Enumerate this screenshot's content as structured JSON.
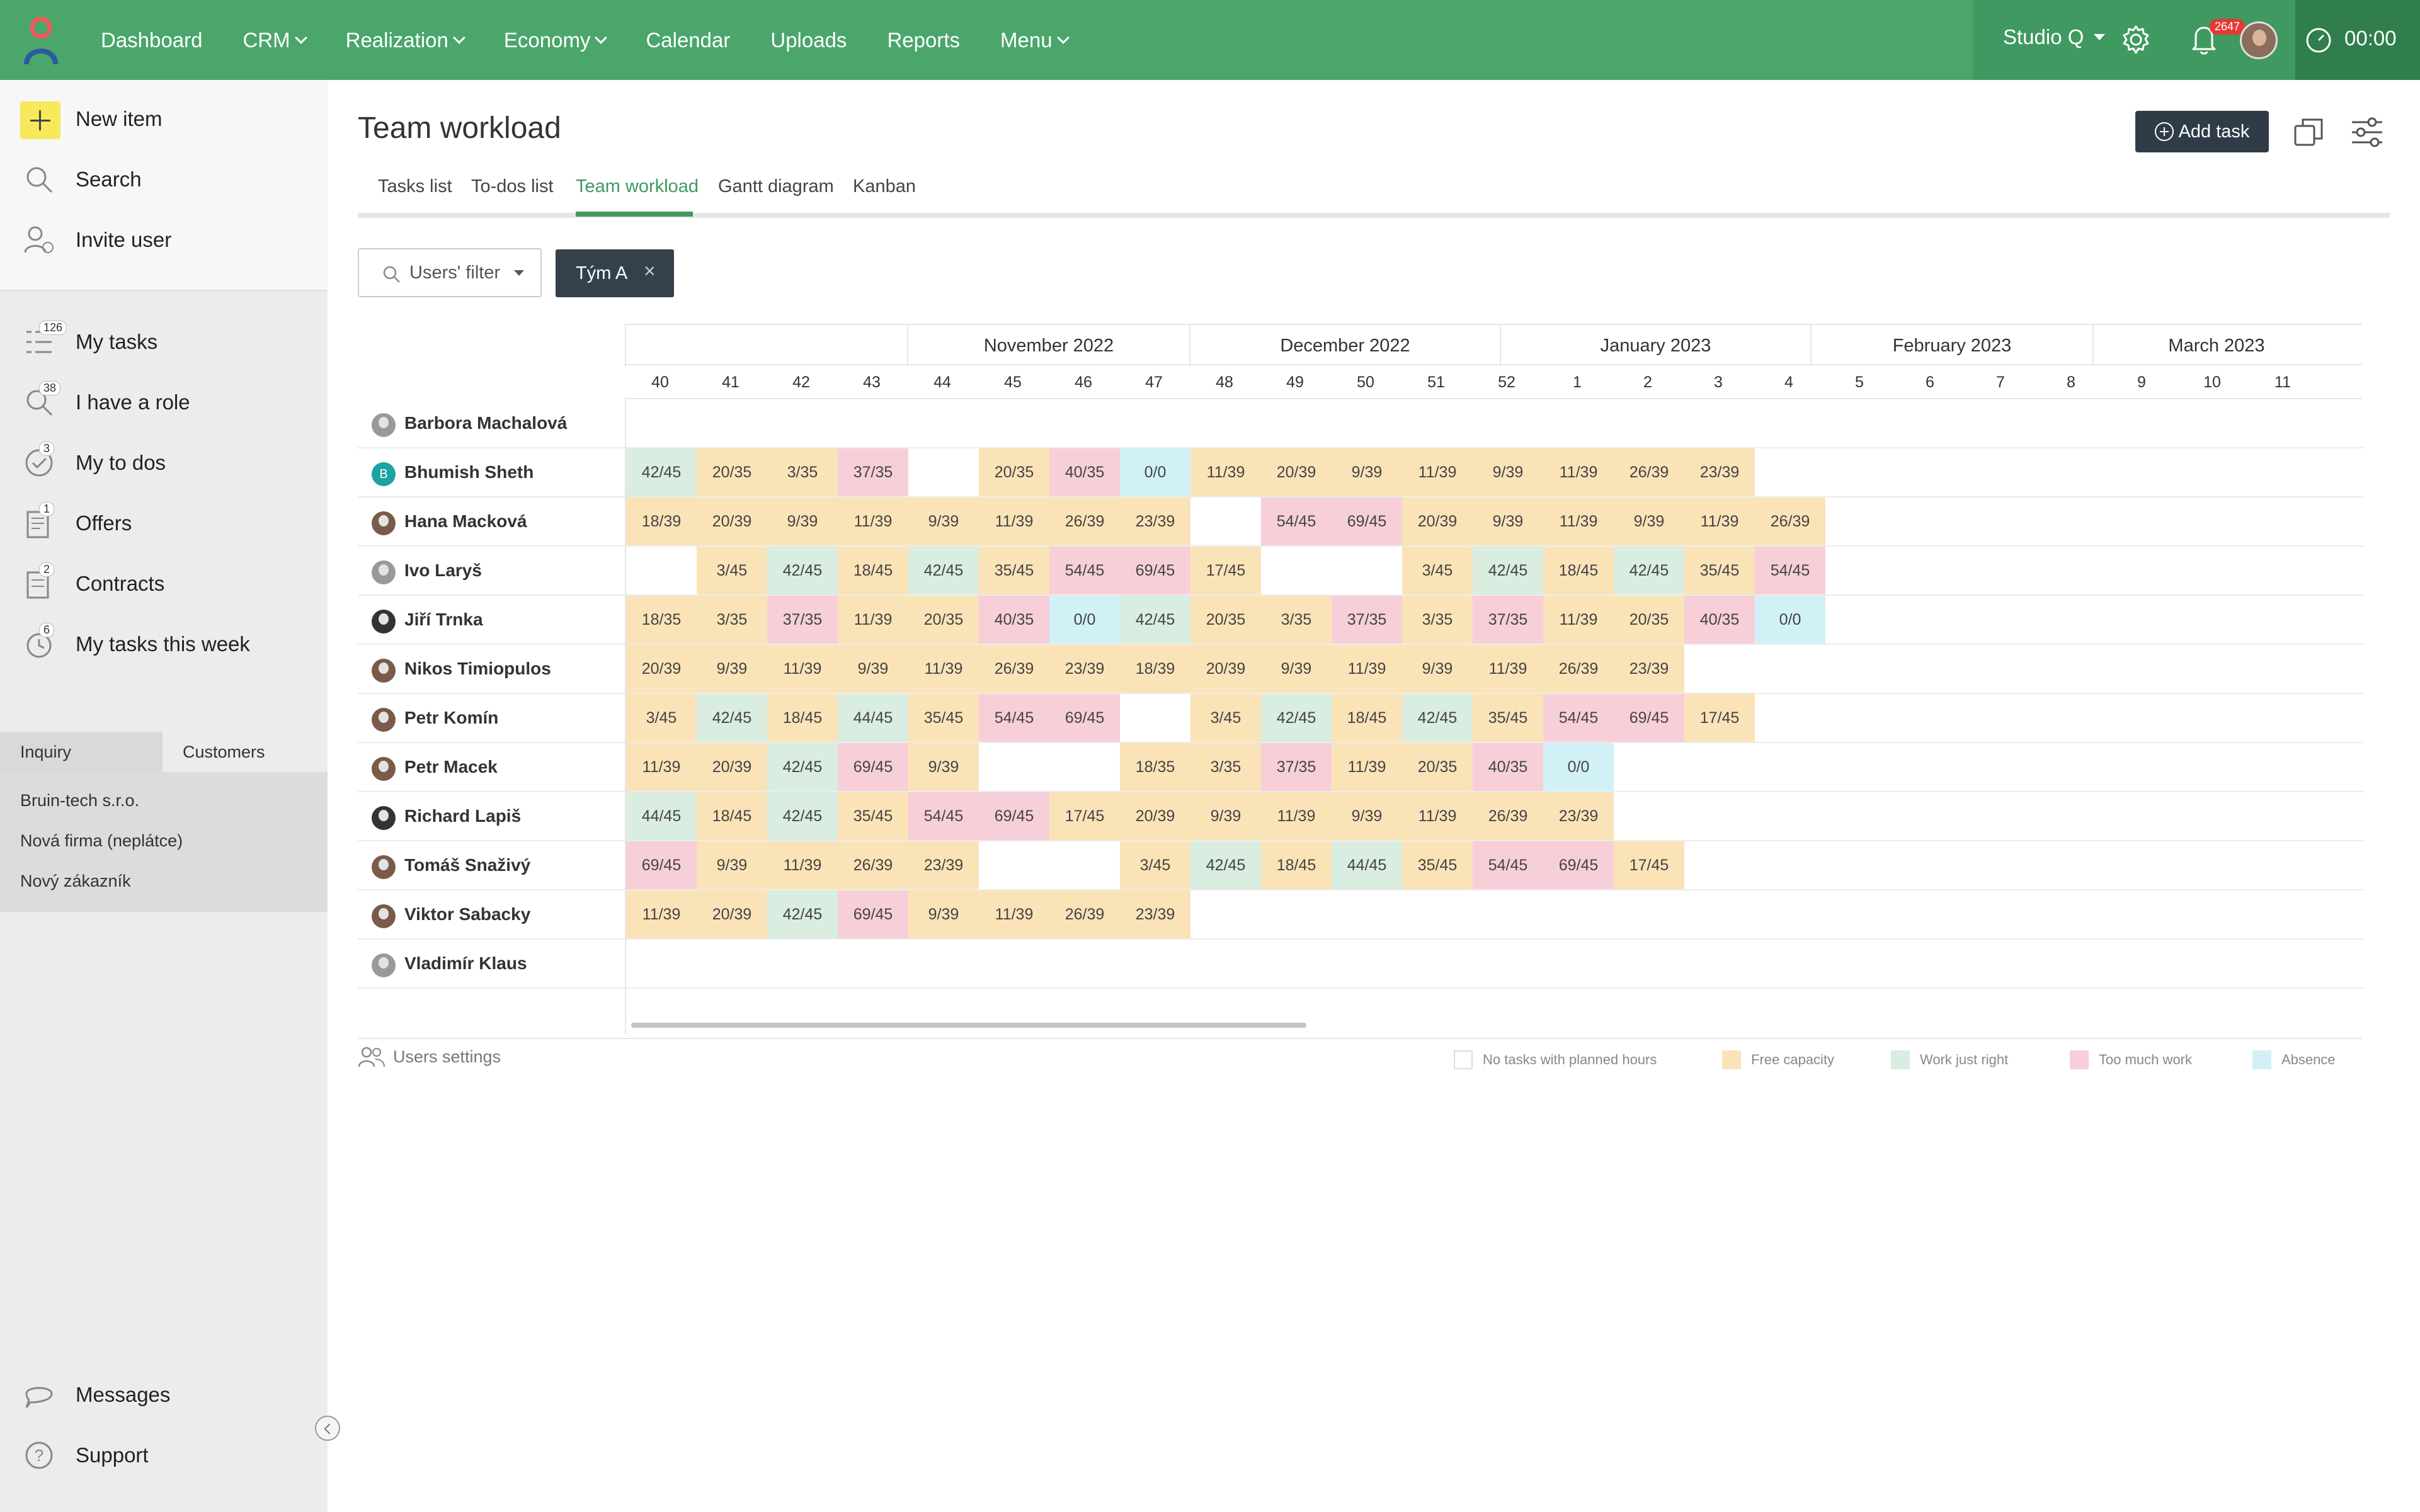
{
  "nav": {
    "items": [
      {
        "label": "Dashboard",
        "dropdown": false
      },
      {
        "label": "CRM",
        "dropdown": true
      },
      {
        "label": "Realization",
        "dropdown": true
      },
      {
        "label": "Economy",
        "dropdown": true
      },
      {
        "label": "Calendar",
        "dropdown": false
      },
      {
        "label": "Uploads",
        "dropdown": false
      },
      {
        "label": "Reports",
        "dropdown": false
      },
      {
        "label": "Menu",
        "dropdown": true
      }
    ],
    "studio": "Studio Q",
    "notifications": "2647",
    "timer": "00:00",
    "colors": {
      "bar": "#4aa66b",
      "accent": "#3f9960"
    }
  },
  "sidebar": {
    "actions": [
      {
        "label": "New item",
        "icon": "plus-icon"
      },
      {
        "label": "Search",
        "icon": "search-icon"
      },
      {
        "label": "Invite user",
        "icon": "invite-user-icon"
      }
    ],
    "items": [
      {
        "label": "My tasks",
        "count": "126",
        "icon": "tasks-icon"
      },
      {
        "label": "I have a role",
        "count": "38",
        "icon": "role-icon"
      },
      {
        "label": "My to dos",
        "count": "3",
        "icon": "todo-icon"
      },
      {
        "label": "Offers",
        "count": "1",
        "icon": "offers-icon"
      },
      {
        "label": "Contracts",
        "count": "2",
        "icon": "contracts-icon"
      },
      {
        "label": "My tasks this week",
        "count": "6",
        "icon": "alarm-icon"
      }
    ],
    "tabs": [
      "Inquiry",
      "Customers"
    ],
    "customers": [
      "Bruin-tech s.r.o.",
      "Nová firma (neplátce)",
      "Nový zákazník"
    ],
    "bottom": [
      {
        "label": "Messages",
        "icon": "chat-icon"
      },
      {
        "label": "Support",
        "icon": "help-icon"
      }
    ]
  },
  "page": {
    "title": "Team workload",
    "add_task": "Add task",
    "tabs": [
      "Tasks list",
      "To-dos list",
      "Team workload",
      "Gantt diagram",
      "Kanban"
    ],
    "active_tab": "Team workload",
    "filter_label": "Users' filter",
    "chip": "Tým A"
  },
  "workload": {
    "months": [
      {
        "label": "",
        "span": 4
      },
      {
        "label": "November 2022",
        "span": 4
      },
      {
        "label": "December 2022",
        "span": 4.4
      },
      {
        "label": "January 2023",
        "span": 4.4
      },
      {
        "label": "February 2023",
        "span": 4
      },
      {
        "label": "March 2023",
        "span": 3.5
      }
    ],
    "weeks": [
      "40",
      "41",
      "42",
      "43",
      "44",
      "45",
      "46",
      "47",
      "48",
      "49",
      "50",
      "51",
      "52",
      "1",
      "2",
      "3",
      "4",
      "5",
      "6",
      "7",
      "8",
      "9",
      "10",
      "11"
    ],
    "users": [
      {
        "name": "Barbora Machalová",
        "avatar": "grey",
        "cells": []
      },
      {
        "name": "Bhumish Sheth",
        "avatar": "letter",
        "initial": "B",
        "cells": [
          [
            "42/45",
            "r"
          ],
          [
            "20/35",
            "f"
          ],
          [
            "3/35",
            "f"
          ],
          [
            "37/35",
            "t"
          ],
          [
            "",
            ""
          ],
          [
            "20/35",
            "f"
          ],
          [
            "40/35",
            "t"
          ],
          [
            "0/0",
            "a"
          ],
          [
            "11/39",
            "f"
          ],
          [
            "20/39",
            "f"
          ],
          [
            "9/39",
            "f"
          ],
          [
            "11/39",
            "f"
          ],
          [
            "9/39",
            "f"
          ],
          [
            "11/39",
            "f"
          ],
          [
            "26/39",
            "f"
          ],
          [
            "23/39",
            "f"
          ]
        ]
      },
      {
        "name": "Hana Macková",
        "avatar": "brown",
        "cells": [
          [
            "18/39",
            "f"
          ],
          [
            "20/39",
            "f"
          ],
          [
            "9/39",
            "f"
          ],
          [
            "11/39",
            "f"
          ],
          [
            "9/39",
            "f"
          ],
          [
            "11/39",
            "f"
          ],
          [
            "26/39",
            "f"
          ],
          [
            "23/39",
            "f"
          ],
          [
            "",
            ""
          ],
          [
            "54/45",
            "t"
          ],
          [
            "69/45",
            "t"
          ],
          [
            "20/39",
            "f"
          ],
          [
            "9/39",
            "f"
          ],
          [
            "11/39",
            "f"
          ],
          [
            "9/39",
            "f"
          ],
          [
            "11/39",
            "f"
          ],
          [
            "26/39",
            "f"
          ]
        ]
      },
      {
        "name": "Ivo Laryš",
        "avatar": "grey",
        "cells": [
          [
            "",
            ""
          ],
          [
            "3/45",
            "f"
          ],
          [
            "42/45",
            "r"
          ],
          [
            "18/45",
            "f"
          ],
          [
            "42/45",
            "r"
          ],
          [
            "35/45",
            "f"
          ],
          [
            "54/45",
            "t"
          ],
          [
            "69/45",
            "t"
          ],
          [
            "17/45",
            "f"
          ],
          [
            "",
            ""
          ],
          [
            "",
            ""
          ],
          [
            "3/45",
            "f"
          ],
          [
            "42/45",
            "r"
          ],
          [
            "18/45",
            "f"
          ],
          [
            "42/45",
            "r"
          ],
          [
            "35/45",
            "f"
          ],
          [
            "54/45",
            "t"
          ]
        ]
      },
      {
        "name": "Jiří Trnka",
        "avatar": "dark",
        "cells": [
          [
            "18/35",
            "f"
          ],
          [
            "3/35",
            "f"
          ],
          [
            "37/35",
            "t"
          ],
          [
            "11/39",
            "f"
          ],
          [
            "20/35",
            "f"
          ],
          [
            "40/35",
            "t"
          ],
          [
            "0/0",
            "a"
          ],
          [
            "42/45",
            "r"
          ],
          [
            "20/35",
            "f"
          ],
          [
            "3/35",
            "f"
          ],
          [
            "37/35",
            "t"
          ],
          [
            "3/35",
            "f"
          ],
          [
            "37/35",
            "t"
          ],
          [
            "11/39",
            "f"
          ],
          [
            "20/35",
            "f"
          ],
          [
            "40/35",
            "t"
          ],
          [
            "0/0",
            "a"
          ]
        ]
      },
      {
        "name": "Nikos Timiopulos",
        "avatar": "brown",
        "cells": [
          [
            "20/39",
            "f"
          ],
          [
            "9/39",
            "f"
          ],
          [
            "11/39",
            "f"
          ],
          [
            "9/39",
            "f"
          ],
          [
            "11/39",
            "f"
          ],
          [
            "26/39",
            "f"
          ],
          [
            "23/39",
            "f"
          ],
          [
            "18/39",
            "f"
          ],
          [
            "20/39",
            "f"
          ],
          [
            "9/39",
            "f"
          ],
          [
            "11/39",
            "f"
          ],
          [
            "9/39",
            "f"
          ],
          [
            "11/39",
            "f"
          ],
          [
            "26/39",
            "f"
          ],
          [
            "23/39",
            "f"
          ]
        ]
      },
      {
        "name": "Petr Komín",
        "avatar": "brown",
        "cells": [
          [
            "3/45",
            "f"
          ],
          [
            "42/45",
            "r"
          ],
          [
            "18/45",
            "f"
          ],
          [
            "44/45",
            "r"
          ],
          [
            "35/45",
            "f"
          ],
          [
            "54/45",
            "t"
          ],
          [
            "69/45",
            "t"
          ],
          [
            "",
            ""
          ],
          [
            "3/45",
            "f"
          ],
          [
            "42/45",
            "r"
          ],
          [
            "18/45",
            "f"
          ],
          [
            "42/45",
            "r"
          ],
          [
            "35/45",
            "f"
          ],
          [
            "54/45",
            "t"
          ],
          [
            "69/45",
            "t"
          ],
          [
            "17/45",
            "f"
          ]
        ]
      },
      {
        "name": "Petr Macek",
        "avatar": "brown",
        "cells": [
          [
            "11/39",
            "f"
          ],
          [
            "20/39",
            "f"
          ],
          [
            "42/45",
            "r"
          ],
          [
            "69/45",
            "t"
          ],
          [
            "9/39",
            "f"
          ],
          [
            "",
            ""
          ],
          [
            "",
            ""
          ],
          [
            "18/35",
            "f"
          ],
          [
            "3/35",
            "f"
          ],
          [
            "37/35",
            "t"
          ],
          [
            "11/39",
            "f"
          ],
          [
            "20/35",
            "f"
          ],
          [
            "40/35",
            "t"
          ],
          [
            "0/0",
            "a"
          ]
        ]
      },
      {
        "name": "Richard Lapiš",
        "avatar": "dark",
        "cells": [
          [
            "44/45",
            "r"
          ],
          [
            "18/45",
            "f"
          ],
          [
            "42/45",
            "r"
          ],
          [
            "35/45",
            "f"
          ],
          [
            "54/45",
            "t"
          ],
          [
            "69/45",
            "t"
          ],
          [
            "17/45",
            "f"
          ],
          [
            "20/39",
            "f"
          ],
          [
            "9/39",
            "f"
          ],
          [
            "11/39",
            "f"
          ],
          [
            "9/39",
            "f"
          ],
          [
            "11/39",
            "f"
          ],
          [
            "26/39",
            "f"
          ],
          [
            "23/39",
            "f"
          ]
        ]
      },
      {
        "name": "Tomáš Snaživý",
        "avatar": "brown",
        "cells": [
          [
            "69/45",
            "t"
          ],
          [
            "9/39",
            "f"
          ],
          [
            "11/39",
            "f"
          ],
          [
            "26/39",
            "f"
          ],
          [
            "23/39",
            "f"
          ],
          [
            "",
            ""
          ],
          [
            "",
            ""
          ],
          [
            "3/45",
            "f"
          ],
          [
            "42/45",
            "r"
          ],
          [
            "18/45",
            "f"
          ],
          [
            "44/45",
            "r"
          ],
          [
            "35/45",
            "f"
          ],
          [
            "54/45",
            "t"
          ],
          [
            "69/45",
            "t"
          ],
          [
            "17/45",
            "f"
          ]
        ]
      },
      {
        "name": "Viktor Sabacky",
        "avatar": "brown",
        "cells": [
          [
            "11/39",
            "f"
          ],
          [
            "20/39",
            "f"
          ],
          [
            "42/45",
            "r"
          ],
          [
            "69/45",
            "t"
          ],
          [
            "9/39",
            "f"
          ],
          [
            "11/39",
            "f"
          ],
          [
            "26/39",
            "f"
          ],
          [
            "23/39",
            "f"
          ]
        ]
      },
      {
        "name": "Vladimír Klaus",
        "avatar": "grey",
        "cells": []
      }
    ],
    "settings_label": "Users settings",
    "legend": [
      {
        "label": "No tasks with planned hours",
        "color": "#ffffff"
      },
      {
        "label": "Free capacity",
        "color": "#fbe3b8"
      },
      {
        "label": "Work just right",
        "color": "#d9ede1"
      },
      {
        "label": "Too much work",
        "color": "#f7cfd9"
      },
      {
        "label": "Absence",
        "color": "#d1f1f7"
      }
    ]
  }
}
